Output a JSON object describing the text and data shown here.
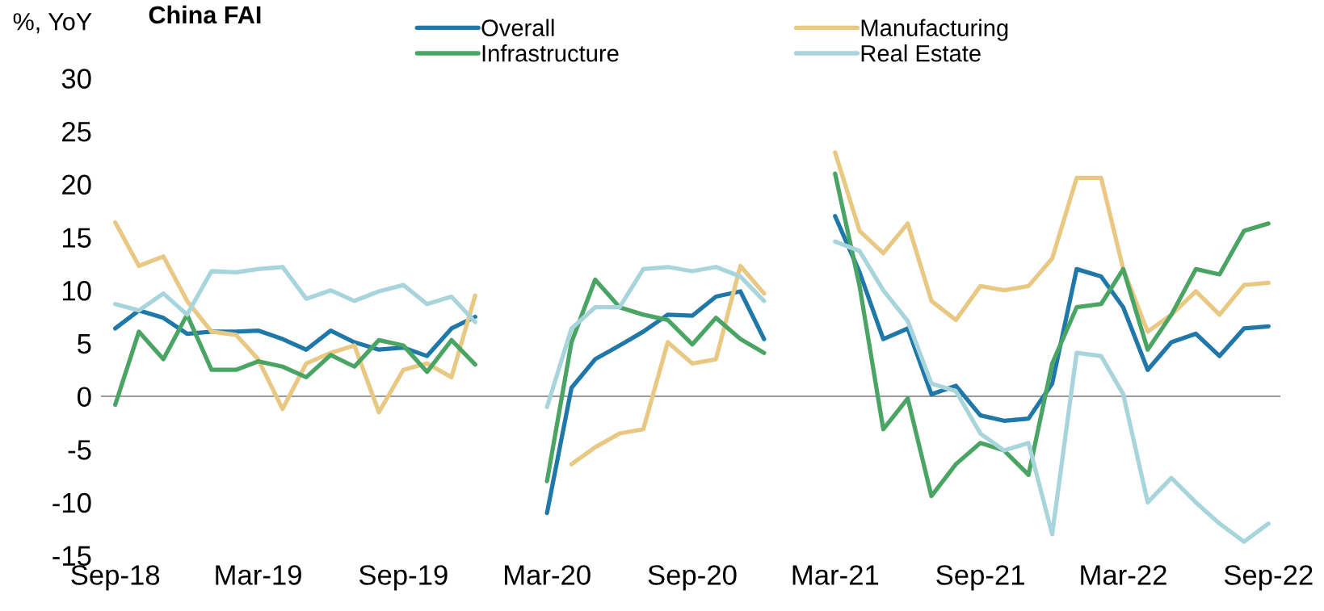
{
  "chart_data": {
    "type": "line",
    "title": "China FAI",
    "ylabel": "%, YoY",
    "x": [
      "2018-09",
      "2018-10",
      "2018-11",
      "2018-12",
      "2019-01",
      "2019-02",
      "2019-03",
      "2019-04",
      "2019-05",
      "2019-06",
      "2019-07",
      "2019-08",
      "2019-09",
      "2019-10",
      "2019-11",
      "2019-12",
      "2020-01",
      "2020-02",
      "2020-03",
      "2020-04",
      "2020-05",
      "2020-06",
      "2020-07",
      "2020-08",
      "2020-09",
      "2020-10",
      "2020-11",
      "2020-12",
      "2021-01",
      "2021-02",
      "2021-03",
      "2021-04",
      "2021-05",
      "2021-06",
      "2021-07",
      "2021-08",
      "2021-09",
      "2021-10",
      "2021-11",
      "2021-12",
      "2022-01",
      "2022-02",
      "2022-03",
      "2022-04",
      "2022-05",
      "2022-06",
      "2022-07",
      "2022-08",
      "2022-09"
    ],
    "series": [
      {
        "name": "Overall",
        "color": "#1f78a8",
        "values": [
          6.4,
          8.1,
          7.4,
          5.9,
          6.1,
          6.1,
          6.2,
          5.4,
          4.4,
          6.2,
          5.1,
          4.4,
          4.6,
          3.8,
          6.4,
          7.5,
          null,
          null,
          -11,
          0.8,
          3.5,
          4.8,
          6.1,
          7.7,
          7.6,
          9.4,
          9.9,
          5.4,
          null,
          null,
          17,
          11.7,
          5.4,
          6.4,
          0.2,
          1.0,
          -1.8,
          -2.3,
          -2.1,
          1.2,
          12.0,
          11.3,
          8.4,
          2.5,
          5.1,
          5.9,
          3.8,
          6.4,
          6.6
        ]
      },
      {
        "name": "Manufacturing",
        "color": "#e8c882",
        "values": [
          16.4,
          12.3,
          13.2,
          9.0,
          6.1,
          5.8,
          3.5,
          -1.2,
          3.1,
          4.1,
          4.8,
          -1.5,
          2.5,
          3.1,
          1.8,
          9.5,
          null,
          null,
          null,
          -6.4,
          -4.8,
          -3.5,
          -3.1,
          5.1,
          3.1,
          3.5,
          12.3,
          9.7,
          null,
          null,
          23,
          15.6,
          13.5,
          16.3,
          9.0,
          7.2,
          10.4,
          10.0,
          10.4,
          13.0,
          20.6,
          20.6,
          12.0,
          6.1,
          7.7,
          9.9,
          7.7,
          10.5,
          10.7
        ]
      },
      {
        "name": "Infrastructure",
        "color": "#4aa564",
        "values": [
          -0.8,
          6.1,
          3.5,
          7.7,
          2.5,
          2.5,
          3.3,
          2.8,
          1.8,
          3.9,
          2.8,
          5.3,
          4.8,
          2.3,
          5.3,
          3.0,
          null,
          null,
          -8,
          5.1,
          11.0,
          8.4,
          7.7,
          7.2,
          4.9,
          7.4,
          5.4,
          4.1,
          null,
          null,
          21,
          10.4,
          -3.1,
          -0.2,
          -9.4,
          -6.4,
          -4.4,
          -5.1,
          -7.4,
          3.1,
          8.4,
          8.7,
          12.0,
          4.4,
          7.7,
          12.0,
          11.5,
          15.6,
          16.3
        ]
      },
      {
        "name": "Real Estate",
        "color": "#a8d4dc",
        "values": [
          8.7,
          8.1,
          9.7,
          7.7,
          11.8,
          11.7,
          12.0,
          12.2,
          9.2,
          10.0,
          9.0,
          9.9,
          10.5,
          8.7,
          9.4,
          7.0,
          null,
          null,
          -1,
          6.4,
          8.4,
          8.4,
          12.0,
          12.2,
          11.8,
          12.2,
          11.3,
          9.0,
          null,
          null,
          14.6,
          13.7,
          10.0,
          7.1,
          1.2,
          0.5,
          -3.5,
          -5.1,
          -4.4,
          -13.0,
          4.1,
          3.8,
          0.2,
          -10.0,
          -7.7,
          -10.0,
          -12.0,
          -13.7,
          -12.0
        ]
      }
    ],
    "xlim": [
      "2018-08-14",
      "2022-09-16"
    ],
    "xticks": [
      {
        "value": "2018-09",
        "label": "Sep-18"
      },
      {
        "value": "2019-03",
        "label": "Mar-19"
      },
      {
        "value": "2019-09",
        "label": "Sep-19"
      },
      {
        "value": "2020-03",
        "label": "Mar-20"
      },
      {
        "value": "2020-09",
        "label": "Sep-20"
      },
      {
        "value": "2021-03",
        "label": "Mar-21"
      },
      {
        "value": "2021-09",
        "label": "Sep-21"
      },
      {
        "value": "2022-03",
        "label": "Mar-22"
      },
      {
        "value": "2022-09",
        "label": "Sep-22"
      }
    ],
    "ylim": [
      -15,
      30
    ],
    "yticks": [
      -15,
      -10,
      -5,
      0,
      5,
      10,
      15,
      20,
      25,
      30
    ],
    "ref_lines": [
      {
        "axis": "y",
        "value": 0,
        "color": "#999999"
      }
    ],
    "grid": false,
    "legend": "top",
    "marker": "none",
    "line_style": "solid"
  }
}
